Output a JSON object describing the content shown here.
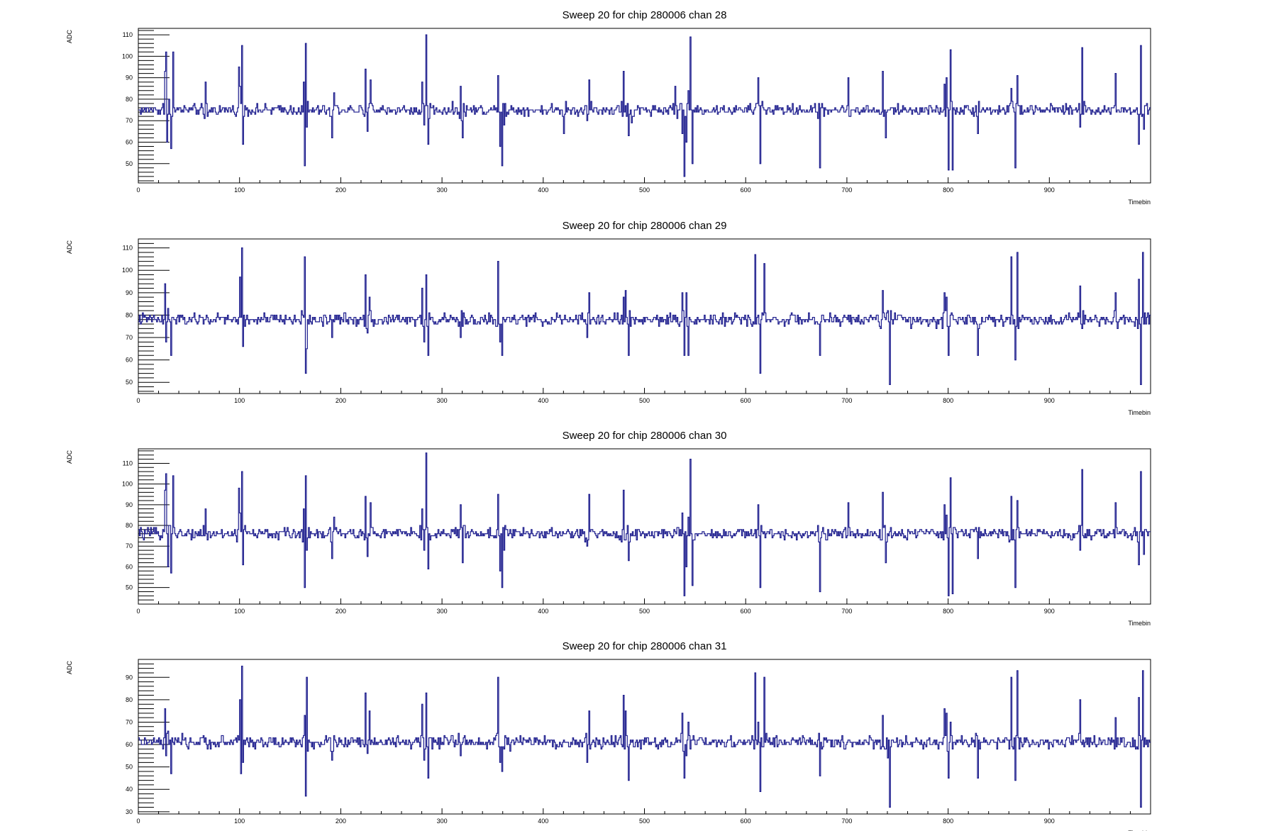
{
  "colors": {
    "series": "#1a1a8c",
    "axis": "#000000",
    "background": "#ffffff"
  },
  "chart_data": [
    {
      "type": "line",
      "title": "Sweep 20 for chip 280006 chan 28",
      "xlabel": "Timebin",
      "ylabel": "ADC",
      "xlim": [
        0,
        1000
      ],
      "ylim": [
        41,
        113
      ],
      "xticks": [
        0,
        100,
        200,
        300,
        400,
        500,
        600,
        700,
        800,
        900
      ],
      "yticks": [
        50,
        60,
        70,
        80,
        90,
        100,
        110
      ],
      "baseline": 75,
      "noise": 1.2,
      "spikes": [
        [
          26,
          93
        ],
        [
          27,
          102
        ],
        [
          28,
          60
        ],
        [
          30,
          80
        ],
        [
          32,
          57
        ],
        [
          34,
          102
        ],
        [
          66,
          88
        ],
        [
          99,
          95
        ],
        [
          100,
          86
        ],
        [
          102,
          105
        ],
        [
          103,
          59
        ],
        [
          163,
          88
        ],
        [
          164,
          49
        ],
        [
          165,
          106
        ],
        [
          166,
          67
        ],
        [
          191,
          62
        ],
        [
          193,
          83
        ],
        [
          224,
          94
        ],
        [
          226,
          65
        ],
        [
          229,
          89
        ],
        [
          280,
          88
        ],
        [
          282,
          68
        ],
        [
          284,
          110
        ],
        [
          286,
          59
        ],
        [
          318,
          86
        ],
        [
          320,
          62
        ],
        [
          319,
          70
        ],
        [
          355,
          91
        ],
        [
          357,
          58
        ],
        [
          359,
          49
        ],
        [
          361,
          68
        ],
        [
          420,
          64
        ],
        [
          443,
          70
        ],
        [
          445,
          89
        ],
        [
          479,
          93
        ],
        [
          483,
          78
        ],
        [
          484,
          63
        ],
        [
          485,
          73
        ],
        [
          487,
          69
        ],
        [
          530,
          86
        ],
        [
          537,
          64
        ],
        [
          539,
          44
        ],
        [
          541,
          60
        ],
        [
          543,
          84
        ],
        [
          545,
          109
        ],
        [
          547,
          50
        ],
        [
          612,
          90
        ],
        [
          614,
          50
        ],
        [
          673,
          48
        ],
        [
          701,
          90
        ],
        [
          735,
          93
        ],
        [
          738,
          62
        ],
        [
          796,
          87
        ],
        [
          798,
          90
        ],
        [
          800,
          47
        ],
        [
          802,
          103
        ],
        [
          804,
          47
        ],
        [
          829,
          64
        ],
        [
          862,
          85
        ],
        [
          866,
          48
        ],
        [
          868,
          91
        ],
        [
          930,
          67
        ],
        [
          932,
          104
        ],
        [
          965,
          92
        ],
        [
          988,
          59
        ],
        [
          990,
          105
        ],
        [
          993,
          66
        ]
      ]
    },
    {
      "type": "line",
      "title": "Sweep 20 for chip 280006 chan 29",
      "xlabel": "Timebin",
      "ylabel": "ADC",
      "xlim": [
        0,
        1000
      ],
      "ylim": [
        45,
        114
      ],
      "xticks": [
        0,
        100,
        200,
        300,
        400,
        500,
        600,
        700,
        800,
        900
      ],
      "yticks": [
        50,
        60,
        70,
        80,
        90,
        100,
        110
      ],
      "baseline": 78,
      "noise": 1.3,
      "spikes": [
        [
          26,
          94
        ],
        [
          27,
          68
        ],
        [
          29,
          83
        ],
        [
          32,
          62
        ],
        [
          100,
          97
        ],
        [
          102,
          110
        ],
        [
          103,
          66
        ],
        [
          164,
          106
        ],
        [
          165,
          54
        ],
        [
          166,
          65
        ],
        [
          191,
          70
        ],
        [
          224,
          98
        ],
        [
          226,
          72
        ],
        [
          228,
          88
        ],
        [
          280,
          92
        ],
        [
          282,
          68
        ],
        [
          284,
          98
        ],
        [
          286,
          62
        ],
        [
          318,
          70
        ],
        [
          355,
          104
        ],
        [
          357,
          68
        ],
        [
          359,
          62
        ],
        [
          443,
          70
        ],
        [
          445,
          90
        ],
        [
          479,
          88
        ],
        [
          481,
          91
        ],
        [
          484,
          62
        ],
        [
          537,
          90
        ],
        [
          539,
          62
        ],
        [
          541,
          90
        ],
        [
          543,
          62
        ],
        [
          545,
          78
        ],
        [
          609,
          107
        ],
        [
          612,
          80
        ],
        [
          614,
          54
        ],
        [
          618,
          103
        ],
        [
          673,
          62
        ],
        [
          735,
          91
        ],
        [
          740,
          82
        ],
        [
          742,
          49
        ],
        [
          796,
          90
        ],
        [
          798,
          88
        ],
        [
          800,
          62
        ],
        [
          802,
          80
        ],
        [
          829,
          62
        ],
        [
          862,
          106
        ],
        [
          866,
          60
        ],
        [
          868,
          108
        ],
        [
          930,
          93
        ],
        [
          932,
          74
        ],
        [
          965,
          90
        ],
        [
          988,
          96
        ],
        [
          990,
          49
        ],
        [
          992,
          108
        ]
      ]
    },
    {
      "type": "line",
      "title": "Sweep 20 for chip 280006 chan 30",
      "xlabel": "Timebin",
      "ylabel": "ADC",
      "xlim": [
        0,
        1000
      ],
      "ylim": [
        42,
        117
      ],
      "xticks": [
        0,
        100,
        200,
        300,
        400,
        500,
        600,
        700,
        800,
        900
      ],
      "yticks": [
        50,
        60,
        70,
        80,
        90,
        100,
        110
      ],
      "baseline": 76,
      "noise": 1.3,
      "spikes": [
        [
          26,
          97
        ],
        [
          27,
          105
        ],
        [
          29,
          60
        ],
        [
          30,
          80
        ],
        [
          32,
          57
        ],
        [
          34,
          104
        ],
        [
          66,
          88
        ],
        [
          99,
          98
        ],
        [
          100,
          86
        ],
        [
          102,
          106
        ],
        [
          103,
          61
        ],
        [
          163,
          88
        ],
        [
          164,
          50
        ],
        [
          165,
          104
        ],
        [
          166,
          68
        ],
        [
          191,
          64
        ],
        [
          193,
          84
        ],
        [
          224,
          94
        ],
        [
          226,
          65
        ],
        [
          229,
          91
        ],
        [
          280,
          88
        ],
        [
          282,
          68
        ],
        [
          284,
          115
        ],
        [
          286,
          59
        ],
        [
          318,
          90
        ],
        [
          320,
          62
        ],
        [
          355,
          95
        ],
        [
          357,
          58
        ],
        [
          359,
          50
        ],
        [
          361,
          68
        ],
        [
          443,
          70
        ],
        [
          445,
          95
        ],
        [
          479,
          97
        ],
        [
          484,
          63
        ],
        [
          537,
          86
        ],
        [
          539,
          46
        ],
        [
          541,
          60
        ],
        [
          543,
          84
        ],
        [
          545,
          112
        ],
        [
          547,
          51
        ],
        [
          612,
          90
        ],
        [
          614,
          50
        ],
        [
          673,
          48
        ],
        [
          701,
          91
        ],
        [
          735,
          96
        ],
        [
          738,
          62
        ],
        [
          796,
          90
        ],
        [
          798,
          85
        ],
        [
          800,
          46
        ],
        [
          802,
          103
        ],
        [
          804,
          47
        ],
        [
          829,
          64
        ],
        [
          862,
          94
        ],
        [
          866,
          50
        ],
        [
          868,
          92
        ],
        [
          930,
          68
        ],
        [
          932,
          107
        ],
        [
          965,
          91
        ],
        [
          988,
          61
        ],
        [
          990,
          106
        ],
        [
          993,
          66
        ]
      ]
    },
    {
      "type": "line",
      "title": "Sweep 20 for chip 280006 chan 31",
      "xlabel": "Timebin",
      "ylabel": "ADC",
      "xlim": [
        0,
        1000
      ],
      "ylim": [
        29,
        98
      ],
      "xticks": [
        0,
        100,
        200,
        300,
        400,
        500,
        600,
        700,
        800,
        900
      ],
      "yticks": [
        30,
        40,
        50,
        60,
        70,
        80,
        90
      ],
      "baseline": 61,
      "noise": 1.3,
      "spikes": [
        [
          26,
          76
        ],
        [
          27,
          55
        ],
        [
          29,
          66
        ],
        [
          32,
          47
        ],
        [
          100,
          80
        ],
        [
          101,
          47
        ],
        [
          102,
          95
        ],
        [
          103,
          52
        ],
        [
          164,
          73
        ],
        [
          165,
          37
        ],
        [
          166,
          90
        ],
        [
          191,
          53
        ],
        [
          224,
          83
        ],
        [
          226,
          56
        ],
        [
          228,
          75
        ],
        [
          280,
          78
        ],
        [
          282,
          53
        ],
        [
          284,
          83
        ],
        [
          286,
          45
        ],
        [
          318,
          55
        ],
        [
          355,
          90
        ],
        [
          357,
          52
        ],
        [
          359,
          48
        ],
        [
          443,
          52
        ],
        [
          445,
          75
        ],
        [
          479,
          82
        ],
        [
          481,
          75
        ],
        [
          484,
          44
        ],
        [
          537,
          74
        ],
        [
          539,
          45
        ],
        [
          541,
          55
        ],
        [
          543,
          70
        ],
        [
          609,
          92
        ],
        [
          612,
          70
        ],
        [
          614,
          39
        ],
        [
          618,
          90
        ],
        [
          673,
          46
        ],
        [
          735,
          73
        ],
        [
          740,
          54
        ],
        [
          742,
          32
        ],
        [
          796,
          76
        ],
        [
          798,
          74
        ],
        [
          800,
          45
        ],
        [
          802,
          70
        ],
        [
          829,
          45
        ],
        [
          862,
          90
        ],
        [
          866,
          44
        ],
        [
          868,
          93
        ],
        [
          930,
          80
        ],
        [
          932,
          60
        ],
        [
          965,
          72
        ],
        [
          988,
          81
        ],
        [
          990,
          32
        ],
        [
          992,
          93
        ]
      ]
    }
  ]
}
